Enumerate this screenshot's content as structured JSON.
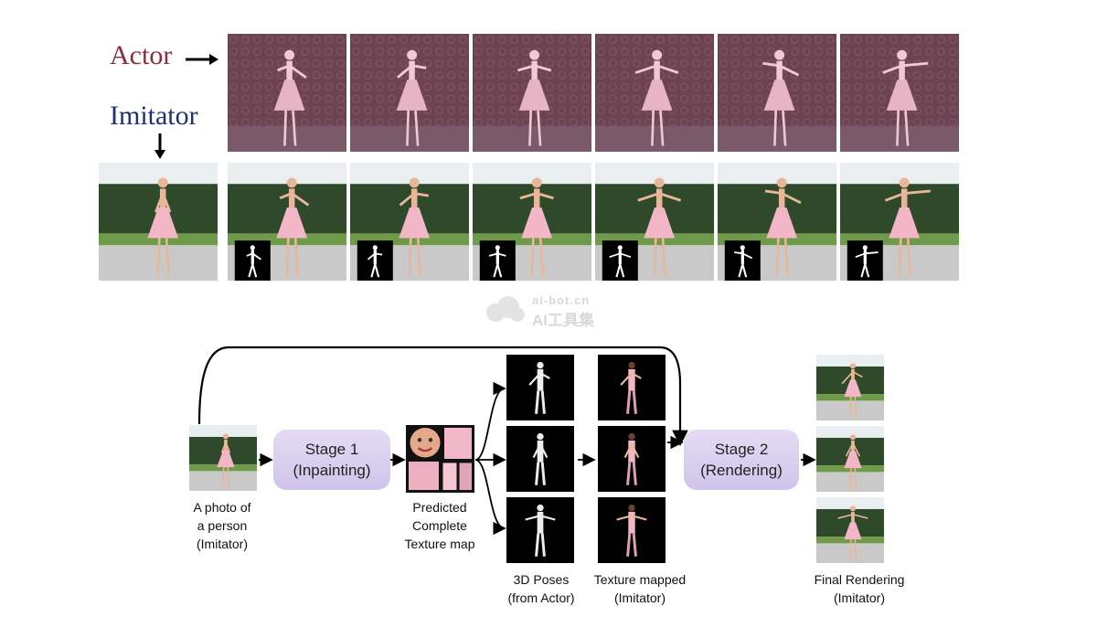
{
  "top": {
    "actor_label": "Actor",
    "imitator_label": "Imitator",
    "actor_color": "#8b2d3e",
    "imitator_color": "#1f2f7a"
  },
  "watermark": {
    "site": "ai-bot.cn",
    "name": "AI工具集"
  },
  "pipeline": {
    "input_caption": [
      "A photo of",
      "a person",
      "(Imitator)"
    ],
    "stage1": [
      "Stage 1",
      "(Inpainting)"
    ],
    "texture_caption": [
      "Predicted",
      "Complete",
      "Texture map"
    ],
    "poses_caption": [
      "3D Poses",
      "(from Actor)"
    ],
    "mapped_caption": [
      "Texture mapped",
      "(Imitator)"
    ],
    "stage2": [
      "Stage 2",
      "(Rendering)"
    ],
    "final_caption": [
      "Final Rendering",
      "(Imitator)"
    ]
  },
  "colors": {
    "stage_fill": "#d8cff0",
    "dress_pink": "#f2b6c6",
    "actor_tint": "#6a3a4a",
    "hedge_green": "#2f4a2a"
  }
}
